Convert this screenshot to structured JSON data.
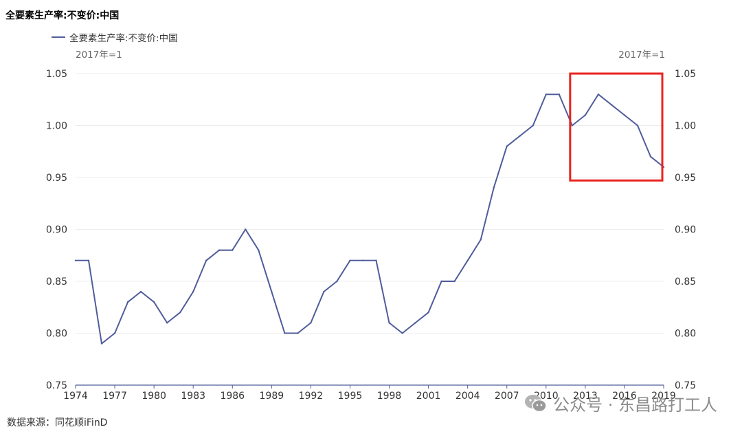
{
  "title": "全要素生产率:不变价:中国",
  "legend": {
    "label": "全要素生产率:不变价:中国"
  },
  "unit_left": "2017年=1",
  "unit_right": "2017年=1",
  "source": "数据来源：同花顺iFinD",
  "watermark": "公众号 · 东昌路打工人",
  "chart_data": {
    "type": "line",
    "title": "全要素生产率:不变价:中国",
    "xlabel": "",
    "ylabel": "",
    "ylim": [
      0.75,
      1.05
    ],
    "yticks": [
      "0.75",
      "0.80",
      "0.85",
      "0.90",
      "0.95",
      "1.00",
      "1.05"
    ],
    "xticks": [
      "1974",
      "1977",
      "1980",
      "1983",
      "1986",
      "1989",
      "1992",
      "1995",
      "1998",
      "2001",
      "2004",
      "2007",
      "2010",
      "2013",
      "2016",
      "2019"
    ],
    "grid": true,
    "legend_position": "top-left",
    "x": [
      1974,
      1975,
      1976,
      1977,
      1978,
      1979,
      1980,
      1981,
      1982,
      1983,
      1984,
      1985,
      1986,
      1987,
      1988,
      1989,
      1990,
      1991,
      1992,
      1993,
      1994,
      1995,
      1996,
      1997,
      1998,
      1999,
      2000,
      2001,
      2002,
      2003,
      2004,
      2005,
      2006,
      2007,
      2008,
      2009,
      2010,
      2011,
      2012,
      2013,
      2014,
      2015,
      2016,
      2017,
      2018,
      2019
    ],
    "series": [
      {
        "name": "全要素生产率:不变价:中国",
        "color": "#4f5c9b",
        "values": [
          0.87,
          0.87,
          0.79,
          0.8,
          0.83,
          0.84,
          0.83,
          0.81,
          0.82,
          0.84,
          0.87,
          0.88,
          0.88,
          0.9,
          0.88,
          0.84,
          0.8,
          0.8,
          0.81,
          0.84,
          0.85,
          0.87,
          0.87,
          0.87,
          0.81,
          0.8,
          0.81,
          0.82,
          0.85,
          0.85,
          0.87,
          0.89,
          0.94,
          0.98,
          0.99,
          1.0,
          1.03,
          1.03,
          1.0,
          1.01,
          1.03,
          1.02,
          1.01,
          1.0,
          0.97,
          0.96
        ]
      }
    ],
    "annotations": [
      {
        "type": "highlight-box",
        "x_range": [
          2012,
          2019
        ],
        "y_range": [
          0.947,
          1.05
        ],
        "color": "#e8231f"
      }
    ]
  }
}
